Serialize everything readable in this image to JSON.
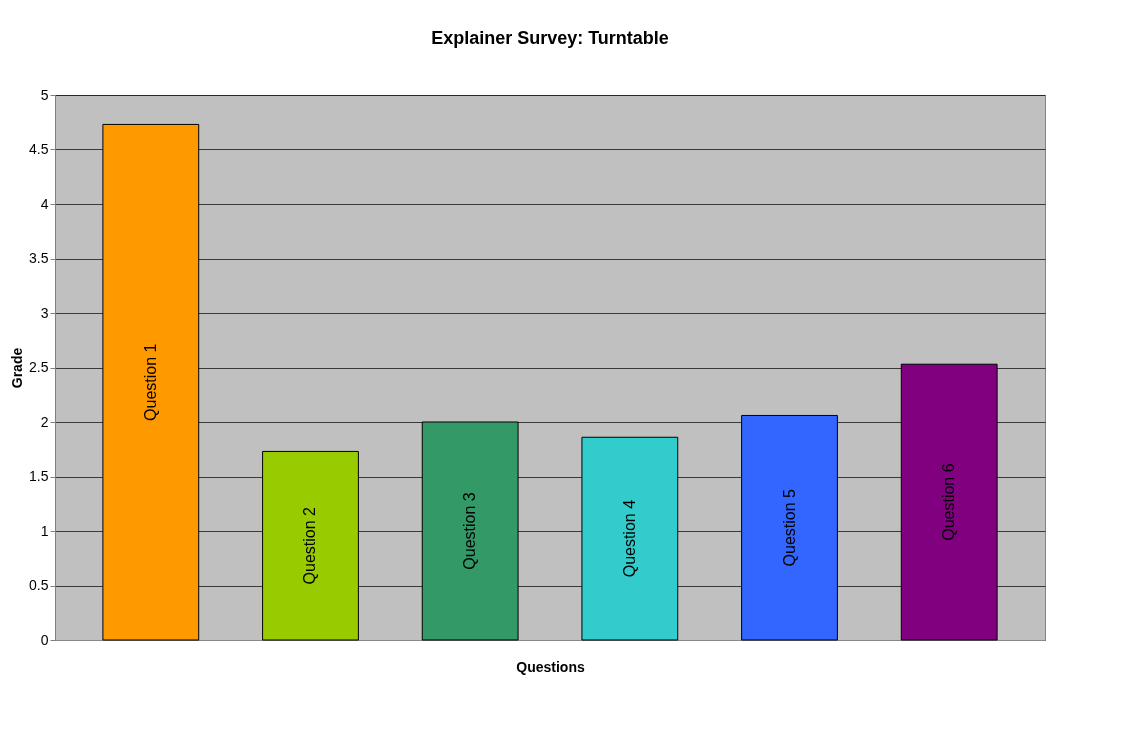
{
  "chart_data": {
    "type": "bar",
    "title": "Explainer Survey: Turntable",
    "xlabel": "Questions",
    "ylabel": "Grade",
    "categories": [
      "Question 1",
      "Question 2",
      "Question 3",
      "Question 4",
      "Question 5",
      "Question 6"
    ],
    "values": [
      4.73,
      1.73,
      2.0,
      1.86,
      2.06,
      2.53
    ],
    "colors": [
      "#ff9900",
      "#99cc00",
      "#339966",
      "#33cccc",
      "#3366ff",
      "#800080"
    ],
    "ylim": [
      0,
      5
    ],
    "yticks": [
      0,
      0.5,
      1,
      1.5,
      2,
      2.5,
      3,
      3.5,
      4,
      4.5,
      5
    ],
    "grid": "y",
    "tick_labels": "y"
  }
}
